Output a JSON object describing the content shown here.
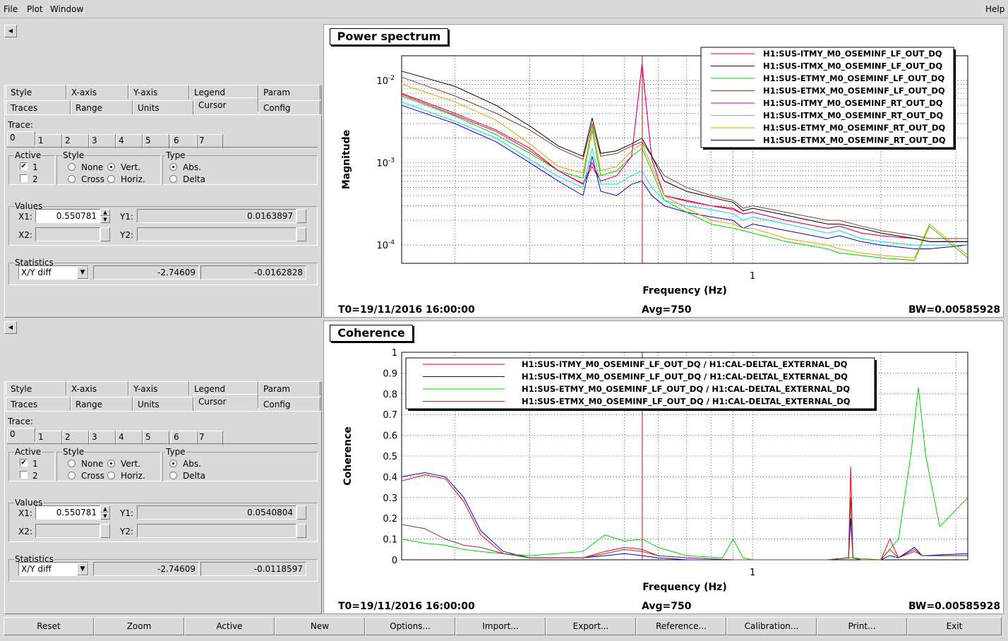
{
  "menu": {
    "file": "File",
    "plot": "Plot",
    "window": "Window",
    "help": "Help"
  },
  "colors": {
    "red": "#e8000b",
    "blue": "#0000dd",
    "green": "#00d000",
    "brown": "#8b3a2a",
    "magenta": "#e0008a",
    "cyan": "#00dcdc",
    "orange": "#e6a000",
    "black": "#000000"
  },
  "panels": [
    {
      "tabs_row1": [
        "Style",
        "X-axis",
        "Y-axis",
        "Legend",
        "Param"
      ],
      "tabs_row2": [
        "Traces",
        "Range",
        "Units",
        "Cursor",
        "Config"
      ],
      "trace_label": "Trace:",
      "trace_tabs": [
        "0",
        "1",
        "2",
        "3",
        "4",
        "5",
        "6",
        "7"
      ],
      "active_label": "Active",
      "active_items": [
        "1",
        "2"
      ],
      "style_label": "Style",
      "style_none": "None",
      "style_vert": "Vert.",
      "style_cross": "Cross",
      "style_horiz": "Horiz.",
      "type_label": "Type",
      "type_abs": "Abs.",
      "type_delta": "Delta",
      "values_label": "Values",
      "x1_label": "X1:",
      "x1_value": "0.550781",
      "x2_label": "X2:",
      "y1_label": "Y1:",
      "y1_value": "0.0163897",
      "y2_label": "Y2:",
      "statistics_label": "Statistics",
      "stat_mode": "X/Y diff",
      "stat_a": "-2.74609",
      "stat_b": "-0.0162828"
    },
    {
      "tabs_row1": [
        "Style",
        "X-axis",
        "Y-axis",
        "Legend",
        "Param"
      ],
      "tabs_row2": [
        "Traces",
        "Range",
        "Units",
        "Cursor",
        "Config"
      ],
      "trace_label": "Trace:",
      "trace_tabs": [
        "0",
        "1",
        "2",
        "3",
        "4",
        "5",
        "6",
        "7"
      ],
      "active_label": "Active",
      "active_items": [
        "1",
        "2"
      ],
      "style_label": "Style",
      "style_none": "None",
      "style_vert": "Vert.",
      "style_cross": "Cross",
      "style_horiz": "Horiz.",
      "type_label": "Type",
      "type_abs": "Abs.",
      "type_delta": "Delta",
      "values_label": "Values",
      "x1_label": "X1:",
      "x1_value": "0.550781",
      "x2_label": "X2:",
      "y1_label": "Y1:",
      "y1_value": "0.0540804",
      "y2_label": "Y2:",
      "statistics_label": "Statistics",
      "stat_mode": "X/Y diff",
      "stat_a": "-2.74609",
      "stat_b": "-0.0118597"
    }
  ],
  "plots": [
    {
      "title": "Power spectrum",
      "footer_t0": "T0=19/11/2016 16:00:00",
      "footer_avg": "Avg=750",
      "footer_bw": "BW=0.00585928"
    },
    {
      "title": "Coherence",
      "footer_t0": "T0=19/11/2016 16:00:00",
      "footer_avg": "Avg=750",
      "footer_bw": "BW=0.00585928"
    }
  ],
  "chart_data": [
    {
      "type": "line",
      "title": "Power spectrum",
      "xlabel": "Frequency (Hz)",
      "ylabel": "Magnitude",
      "x_scale": "log",
      "y_scale": "log",
      "xlim": [
        0.15,
        3.2
      ],
      "ylim": [
        6e-05,
        0.02
      ],
      "y_ticks": [
        "10^-2",
        "10^-3",
        "10^-4"
      ],
      "x_tick_labels": [
        "1"
      ],
      "grid": true,
      "legend_position": "top-right",
      "cursor_x": 0.550781,
      "series": [
        {
          "name": "H1:SUS-ITMY_M0_OSEMINF_LF_OUT_DQ",
          "color": "#e8000b",
          "x": [
            0.15,
            0.2,
            0.25,
            0.3,
            0.35,
            0.4,
            0.42,
            0.44,
            0.48,
            0.52,
            0.55,
            0.58,
            0.62,
            0.7,
            0.8,
            0.9,
            0.95,
            1.0,
            1.2,
            1.5,
            1.6,
            1.8,
            2.0,
            2.4,
            2.6,
            3.2
          ],
          "y": [
            0.007,
            0.004,
            0.0025,
            0.0015,
            0.0008,
            0.00055,
            0.0009,
            0.0006,
            0.0007,
            0.0012,
            0.016,
            0.0011,
            0.0004,
            0.00035,
            0.0003,
            0.00028,
            0.00024,
            0.00025,
            0.0002,
            0.00016,
            0.00017,
            0.00014,
            0.00013,
            0.00012,
            0.00011,
            0.00011
          ]
        },
        {
          "name": "H1:SUS-ITMX_M0_OSEMINF_LF_OUT_DQ",
          "color": "#0000dd",
          "x": [
            0.15,
            0.2,
            0.25,
            0.3,
            0.35,
            0.4,
            0.42,
            0.44,
            0.48,
            0.52,
            0.55,
            0.58,
            0.62,
            0.7,
            0.8,
            0.9,
            0.95,
            1.0,
            1.2,
            1.5,
            1.6,
            1.8,
            2.0,
            2.4,
            2.6,
            3.2
          ],
          "y": [
            0.005,
            0.003,
            0.0018,
            0.001,
            0.0006,
            0.0004,
            0.0012,
            0.00045,
            0.0004,
            0.00055,
            0.0006,
            0.0004,
            0.0003,
            0.00025,
            0.00022,
            0.0002,
            0.00016,
            0.00018,
            0.00015,
            0.00012,
            0.00013,
            0.00011,
            0.0001,
            9e-05,
            9e-05,
            0.0001
          ]
        },
        {
          "name": "H1:SUS-ETMY_M0_OSEMINF_LF_OUT_DQ",
          "color": "#00d000",
          "x": [
            0.15,
            0.2,
            0.25,
            0.3,
            0.35,
            0.4,
            0.42,
            0.44,
            0.48,
            0.52,
            0.55,
            0.58,
            0.62,
            0.7,
            0.8,
            0.9,
            0.95,
            1.0,
            1.2,
            1.5,
            1.6,
            1.8,
            2.0,
            2.4,
            2.6,
            3.2
          ],
          "y": [
            0.0065,
            0.0037,
            0.0022,
            0.0013,
            0.0008,
            0.00065,
            0.0025,
            0.0007,
            0.0008,
            0.0012,
            0.0015,
            0.0008,
            0.00035,
            0.00025,
            0.00018,
            0.00016,
            0.00015,
            0.00014,
            0.00011,
            9e-05,
            8e-05,
            7.5e-05,
            7e-05,
            6.5e-05,
            0.00017,
            7e-05
          ]
        },
        {
          "name": "H1:SUS-ETMX_M0_OSEMINF_LF_OUT_DQ",
          "color": "#8b3a2a",
          "x": [
            0.15,
            0.2,
            0.25,
            0.3,
            0.35,
            0.4,
            0.42,
            0.44,
            0.48,
            0.52,
            0.55,
            0.58,
            0.62,
            0.7,
            0.8,
            0.9,
            0.95,
            1.0,
            1.2,
            1.5,
            1.6,
            1.8,
            2.0,
            2.4,
            2.6,
            3.2
          ],
          "y": [
            0.011,
            0.0065,
            0.004,
            0.0025,
            0.0015,
            0.0011,
            0.003,
            0.0012,
            0.0013,
            0.0016,
            0.0018,
            0.0012,
            0.0007,
            0.0005,
            0.0004,
            0.00035,
            0.00028,
            0.0003,
            0.00025,
            0.0002,
            0.0002,
            0.00017,
            0.00015,
            0.00013,
            0.00012,
            0.00012
          ]
        },
        {
          "name": "H1:SUS-ITMY_M0_OSEMINF_RT_OUT_DQ",
          "color": "#e0008a",
          "x": [
            0.15,
            0.2,
            0.25,
            0.3,
            0.35,
            0.4,
            0.42,
            0.44,
            0.48,
            0.52,
            0.55,
            0.58,
            0.62,
            0.7,
            0.8,
            0.9,
            0.95,
            1.0,
            1.2,
            1.5,
            1.6,
            1.8,
            2.0,
            2.4,
            2.6,
            3.2
          ],
          "y": [
            0.0068,
            0.0038,
            0.0024,
            0.0014,
            0.0008,
            0.00056,
            0.001,
            0.0006,
            0.0007,
            0.0012,
            0.0155,
            0.0011,
            0.0004,
            0.00034,
            0.0003,
            0.00027,
            0.00024,
            0.00025,
            0.0002,
            0.00016,
            0.00017,
            0.00014,
            0.00013,
            0.00012,
            0.00011,
            0.00011
          ]
        },
        {
          "name": "H1:SUS-ITMX_M0_OSEMINF_RT_OUT_DQ",
          "color": "#00dcdc",
          "x": [
            0.15,
            0.2,
            0.25,
            0.3,
            0.35,
            0.4,
            0.42,
            0.44,
            0.48,
            0.52,
            0.55,
            0.58,
            0.62,
            0.7,
            0.8,
            0.9,
            0.95,
            1.0,
            1.2,
            1.5,
            1.6,
            1.8,
            2.0,
            2.4,
            2.6,
            3.2
          ],
          "y": [
            0.0055,
            0.0032,
            0.002,
            0.0011,
            0.00068,
            0.0005,
            0.0015,
            0.00055,
            0.00055,
            0.0007,
            0.0008,
            0.0005,
            0.00035,
            0.0003,
            0.00027,
            0.00024,
            0.0002,
            0.00022,
            0.00018,
            0.00014,
            0.00015,
            0.00012,
            0.00011,
            0.0001,
            0.0001,
            0.0001
          ]
        },
        {
          "name": "H1:SUS-ETMY_M0_OSEMINF_RT_OUT_DQ",
          "color": "#e6a000",
          "x": [
            0.15,
            0.2,
            0.25,
            0.3,
            0.35,
            0.4,
            0.42,
            0.44,
            0.48,
            0.52,
            0.55,
            0.58,
            0.62,
            0.7,
            0.8,
            0.9,
            0.95,
            1.0,
            1.2,
            1.5,
            1.6,
            1.8,
            2.0,
            2.4,
            2.6,
            3.2
          ],
          "y": [
            0.009,
            0.0055,
            0.0033,
            0.0017,
            0.0009,
            0.00075,
            0.0028,
            0.0008,
            0.0009,
            0.0014,
            0.0017,
            0.0009,
            0.0004,
            0.00028,
            0.0002,
            0.00018,
            0.00016,
            0.00016,
            0.00012,
            0.0001,
            9e-05,
            8e-05,
            7.5e-05,
            7e-05,
            0.00018,
            7.5e-05
          ]
        },
        {
          "name": "H1:SUS-ETMX_M0_OSEMINF_RT_OUT_DQ",
          "color": "#000000",
          "x": [
            0.15,
            0.2,
            0.25,
            0.3,
            0.35,
            0.4,
            0.42,
            0.44,
            0.48,
            0.52,
            0.55,
            0.58,
            0.62,
            0.7,
            0.8,
            0.9,
            0.95,
            1.0,
            1.2,
            1.5,
            1.6,
            1.8,
            2.0,
            2.4,
            2.6,
            3.2
          ],
          "y": [
            0.013,
            0.0085,
            0.005,
            0.0028,
            0.0016,
            0.0012,
            0.0035,
            0.0013,
            0.0014,
            0.0017,
            0.002,
            0.0012,
            0.0006,
            0.00045,
            0.00038,
            0.00033,
            0.00026,
            0.00028,
            0.00023,
            0.00018,
            0.00018,
            0.00016,
            0.00014,
            0.00012,
            0.00011,
            0.00011
          ]
        }
      ]
    },
    {
      "type": "line",
      "title": "Coherence",
      "xlabel": "Frequency (Hz)",
      "ylabel": "Coherence",
      "x_scale": "log",
      "y_scale": "linear",
      "xlim": [
        0.15,
        3.2
      ],
      "ylim": [
        0,
        1
      ],
      "y_tick_labels": [
        "0",
        "0.1",
        "0.2",
        "0.3",
        "0.4",
        "0.5",
        "0.6",
        "0.7",
        "0.8",
        "0.9",
        "1"
      ],
      "x_tick_labels": [
        "1"
      ],
      "grid": true,
      "legend_position": "top",
      "cursor_x": 0.550781,
      "series": [
        {
          "name": "H1:SUS-ITMY_M0_OSEMINF_LF_OUT_DQ / H1:CAL-DELTAL_EXTERNAL_DQ",
          "color": "#e8000b",
          "x": [
            0.15,
            0.17,
            0.19,
            0.21,
            0.23,
            0.26,
            0.3,
            0.4,
            0.45,
            0.5,
            0.55,
            0.6,
            0.7,
            0.9,
            1.0,
            1.5,
            1.68,
            1.7,
            1.72,
            1.8,
            2.0,
            2.1,
            2.2,
            2.4,
            2.5,
            3.2
          ],
          "y": [
            0.38,
            0.41,
            0.39,
            0.28,
            0.12,
            0.03,
            0.01,
            0.01,
            0.04,
            0.06,
            0.05,
            0.02,
            0.01,
            0.0,
            0.0,
            0.0,
            0.01,
            0.45,
            0.01,
            0.0,
            0.0,
            0.1,
            0.01,
            0.05,
            0.02,
            0.02
          ]
        },
        {
          "name": "H1:SUS-ITMX_M0_OSEMINF_LF_OUT_DQ / H1:CAL-DELTAL_EXTERNAL_DQ",
          "color": "#0000dd",
          "x": [
            0.15,
            0.17,
            0.19,
            0.21,
            0.23,
            0.26,
            0.3,
            0.4,
            0.45,
            0.5,
            0.55,
            0.6,
            0.7,
            0.9,
            1.0,
            1.5,
            1.68,
            1.7,
            1.72,
            1.8,
            2.0,
            2.1,
            2.2,
            2.4,
            2.5,
            3.2
          ],
          "y": [
            0.4,
            0.42,
            0.4,
            0.3,
            0.14,
            0.04,
            0.01,
            0.01,
            0.02,
            0.03,
            0.02,
            0.01,
            0.0,
            0.0,
            0.0,
            0.0,
            0.01,
            0.2,
            0.01,
            0.0,
            0.0,
            0.02,
            0.01,
            0.06,
            0.02,
            0.03
          ]
        },
        {
          "name": "H1:SUS-ETMY_M0_OSEMINF_LF_OUT_DQ / H1:CAL-DELTAL_EXTERNAL_DQ",
          "color": "#00d000",
          "x": [
            0.15,
            0.17,
            0.19,
            0.21,
            0.23,
            0.26,
            0.3,
            0.4,
            0.45,
            0.5,
            0.55,
            0.6,
            0.7,
            0.85,
            0.9,
            0.95,
            1.0,
            1.5,
            1.7,
            2.0,
            2.2,
            2.35,
            2.45,
            2.55,
            2.75,
            3.2
          ],
          "y": [
            0.1,
            0.08,
            0.07,
            0.05,
            0.04,
            0.03,
            0.02,
            0.04,
            0.12,
            0.09,
            0.1,
            0.06,
            0.02,
            0.01,
            0.1,
            0.01,
            0.0,
            0.0,
            0.01,
            0.0,
            0.1,
            0.5,
            0.83,
            0.5,
            0.16,
            0.3
          ]
        },
        {
          "name": "H1:SUS-ETMX_M0_OSEMINF_LF_OUT_DQ / H1:CAL-DELTAL_EXTERNAL_DQ",
          "color": "#8b3a2a",
          "x": [
            0.15,
            0.17,
            0.19,
            0.21,
            0.23,
            0.26,
            0.3,
            0.4,
            0.45,
            0.5,
            0.55,
            0.6,
            0.7,
            0.9,
            1.0,
            1.5,
            1.68,
            1.7,
            1.72,
            1.8,
            2.0,
            2.1,
            2.2,
            2.4,
            2.5,
            3.2
          ],
          "y": [
            0.17,
            0.15,
            0.1,
            0.07,
            0.06,
            0.03,
            0.01,
            0.01,
            0.03,
            0.05,
            0.04,
            0.02,
            0.01,
            0.0,
            0.0,
            0.0,
            0.01,
            0.3,
            0.01,
            0.0,
            0.0,
            0.05,
            0.01,
            0.04,
            0.02,
            0.02
          ]
        }
      ]
    }
  ],
  "bottom_buttons": [
    "Reset",
    "Zoom",
    "Active",
    "New",
    "Options...",
    "Import...",
    "Export...",
    "Reference...",
    "Calibration...",
    "Print...",
    "Exit"
  ]
}
